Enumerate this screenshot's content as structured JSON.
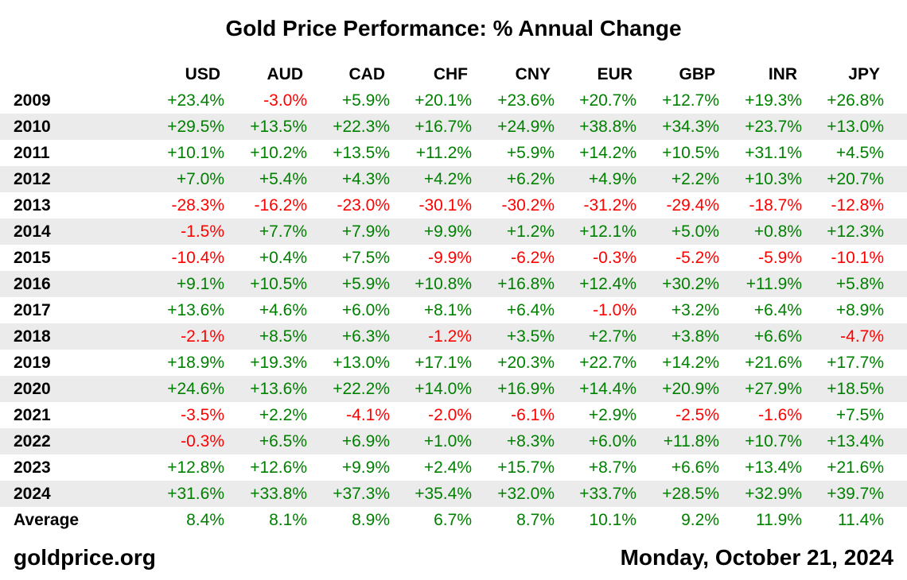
{
  "title": "Gold Price Performance: % Annual Change",
  "footer": {
    "source": "goldprice.org",
    "date": "Monday, October 21, 2024"
  },
  "colors": {
    "positive": "#008000",
    "negative": "#ff0000",
    "stripe": "#ebebeb"
  },
  "chart_data": {
    "type": "table",
    "title": "Gold Price Performance: % Annual Change",
    "columns": [
      "USD",
      "AUD",
      "CAD",
      "CHF",
      "CNY",
      "EUR",
      "GBP",
      "INR",
      "JPY"
    ],
    "rows": [
      {
        "label": "2009",
        "values": [
          "+23.4%",
          "-3.0%",
          "+5.9%",
          "+20.1%",
          "+23.6%",
          "+20.7%",
          "+12.7%",
          "+19.3%",
          "+26.8%"
        ]
      },
      {
        "label": "2010",
        "values": [
          "+29.5%",
          "+13.5%",
          "+22.3%",
          "+16.7%",
          "+24.9%",
          "+38.8%",
          "+34.3%",
          "+23.7%",
          "+13.0%"
        ]
      },
      {
        "label": "2011",
        "values": [
          "+10.1%",
          "+10.2%",
          "+13.5%",
          "+11.2%",
          "+5.9%",
          "+14.2%",
          "+10.5%",
          "+31.1%",
          "+4.5%"
        ]
      },
      {
        "label": "2012",
        "values": [
          "+7.0%",
          "+5.4%",
          "+4.3%",
          "+4.2%",
          "+6.2%",
          "+4.9%",
          "+2.2%",
          "+10.3%",
          "+20.7%"
        ]
      },
      {
        "label": "2013",
        "values": [
          "-28.3%",
          "-16.2%",
          "-23.0%",
          "-30.1%",
          "-30.2%",
          "-31.2%",
          "-29.4%",
          "-18.7%",
          "-12.8%"
        ]
      },
      {
        "label": "2014",
        "values": [
          "-1.5%",
          "+7.7%",
          "+7.9%",
          "+9.9%",
          "+1.2%",
          "+12.1%",
          "+5.0%",
          "+0.8%",
          "+12.3%"
        ]
      },
      {
        "label": "2015",
        "values": [
          "-10.4%",
          "+0.4%",
          "+7.5%",
          "-9.9%",
          "-6.2%",
          "-0.3%",
          "-5.2%",
          "-5.9%",
          "-10.1%"
        ]
      },
      {
        "label": "2016",
        "values": [
          "+9.1%",
          "+10.5%",
          "+5.9%",
          "+10.8%",
          "+16.8%",
          "+12.4%",
          "+30.2%",
          "+11.9%",
          "+5.8%"
        ]
      },
      {
        "label": "2017",
        "values": [
          "+13.6%",
          "+4.6%",
          "+6.0%",
          "+8.1%",
          "+6.4%",
          "-1.0%",
          "+3.2%",
          "+6.4%",
          "+8.9%"
        ]
      },
      {
        "label": "2018",
        "values": [
          "-2.1%",
          "+8.5%",
          "+6.3%",
          "-1.2%",
          "+3.5%",
          "+2.7%",
          "+3.8%",
          "+6.6%",
          "-4.7%"
        ]
      },
      {
        "label": "2019",
        "values": [
          "+18.9%",
          "+19.3%",
          "+13.0%",
          "+17.1%",
          "+20.3%",
          "+22.7%",
          "+14.2%",
          "+21.6%",
          "+17.7%"
        ]
      },
      {
        "label": "2020",
        "values": [
          "+24.6%",
          "+13.6%",
          "+22.2%",
          "+14.0%",
          "+16.9%",
          "+14.4%",
          "+20.9%",
          "+27.9%",
          "+18.5%"
        ]
      },
      {
        "label": "2021",
        "values": [
          "-3.5%",
          "+2.2%",
          "-4.1%",
          "-2.0%",
          "-6.1%",
          "+2.9%",
          "-2.5%",
          "-1.6%",
          "+7.5%"
        ]
      },
      {
        "label": "2022",
        "values": [
          "-0.3%",
          "+6.5%",
          "+6.9%",
          "+1.0%",
          "+8.3%",
          "+6.0%",
          "+11.8%",
          "+10.7%",
          "+13.4%"
        ]
      },
      {
        "label": "2023",
        "values": [
          "+12.8%",
          "+12.6%",
          "+9.9%",
          "+2.4%",
          "+15.7%",
          "+8.7%",
          "+6.6%",
          "+13.4%",
          "+21.6%"
        ]
      },
      {
        "label": "2024",
        "values": [
          "+31.6%",
          "+33.8%",
          "+37.3%",
          "+35.4%",
          "+32.0%",
          "+33.7%",
          "+28.5%",
          "+32.9%",
          "+39.7%"
        ]
      },
      {
        "label": "Average",
        "values": [
          "8.4%",
          "8.1%",
          "8.9%",
          "6.7%",
          "8.7%",
          "10.1%",
          "9.2%",
          "11.9%",
          "11.4%"
        ]
      }
    ]
  }
}
